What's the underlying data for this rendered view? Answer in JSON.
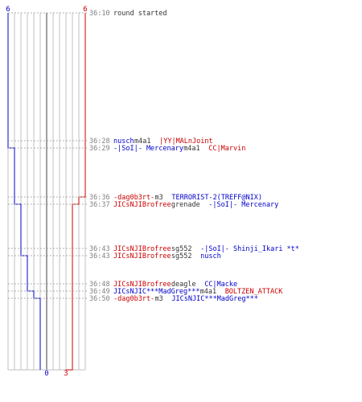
{
  "axis": {
    "top_left": "6",
    "top_right": "6",
    "bottom_zero": "0",
    "bottom_three": "3"
  },
  "colors": {
    "blue": "#0000cc",
    "red": "#cc0000",
    "grid": "#c0c0c0",
    "center": "#606060",
    "time": "#808080",
    "neutral": "#333333"
  },
  "score_steps": {
    "blue": [
      6,
      6,
      5,
      5,
      4,
      4,
      3,
      3,
      2,
      1,
      1,
      0
    ],
    "red": [
      6,
      6,
      6,
      5,
      4,
      4,
      4,
      4,
      4,
      4,
      3,
      3
    ]
  },
  "events": [
    {
      "time": "36:10",
      "parts": [
        {
          "text": "round started",
          "color": "neutral"
        }
      ]
    },
    {
      "time": "36:28",
      "parts": [
        {
          "text": "nusch",
          "color": "blue"
        },
        {
          "text": " m4a1 ",
          "color": "neutral"
        },
        {
          "text": "|YY|MALnJoint",
          "color": "red"
        }
      ]
    },
    {
      "time": "36:29",
      "parts": [
        {
          "text": "-|SoI|- Mercenary",
          "color": "blue"
        },
        {
          "text": " m4a1 ",
          "color": "neutral"
        },
        {
          "text": "CC|Marvin",
          "color": "red"
        }
      ]
    },
    {
      "time": "36:36",
      "parts": [
        {
          "text": "-dag0b3rt-",
          "color": "red"
        },
        {
          "text": " m3 ",
          "color": "neutral"
        },
        {
          "text": "TERRORIST-2(TREFF@NIX)",
          "color": "blue"
        }
      ]
    },
    {
      "time": "36:37",
      "parts": [
        {
          "text": "JICsNJIBrofree",
          "color": "red"
        },
        {
          "text": " grenade ",
          "color": "neutral"
        },
        {
          "text": "-|SoI|- Mercenary",
          "color": "blue"
        }
      ]
    },
    {
      "time": "36:43",
      "parts": [
        {
          "text": "JICsNJIBrofree",
          "color": "red"
        },
        {
          "text": " sg552 ",
          "color": "neutral"
        },
        {
          "text": "-|SoI|- Shinji_Ikari *t*",
          "color": "blue"
        }
      ]
    },
    {
      "time": "36:43",
      "parts": [
        {
          "text": "JICsNJIBrofree",
          "color": "red"
        },
        {
          "text": " sg552 ",
          "color": "neutral"
        },
        {
          "text": "nusch",
          "color": "blue"
        }
      ]
    },
    {
      "time": "36:48",
      "parts": [
        {
          "text": "JICsNJIBrofree",
          "color": "red"
        },
        {
          "text": " deagle ",
          "color": "neutral"
        },
        {
          "text": "CC|Macke",
          "color": "blue"
        }
      ]
    },
    {
      "time": "36:49",
      "parts": [
        {
          "text": "JICsNJIC***MadGreg***",
          "color": "blue"
        },
        {
          "text": " m4a1 ",
          "color": "neutral"
        },
        {
          "text": "BOLTZEN_ATTACK",
          "color": "red"
        }
      ]
    },
    {
      "time": "36:50",
      "parts": [
        {
          "text": "-dag0b3rt-",
          "color": "red"
        },
        {
          "text": " m3 ",
          "color": "neutral"
        },
        {
          "text": "JICsNJIC***MadGreg***",
          "color": "blue"
        }
      ]
    }
  ]
}
